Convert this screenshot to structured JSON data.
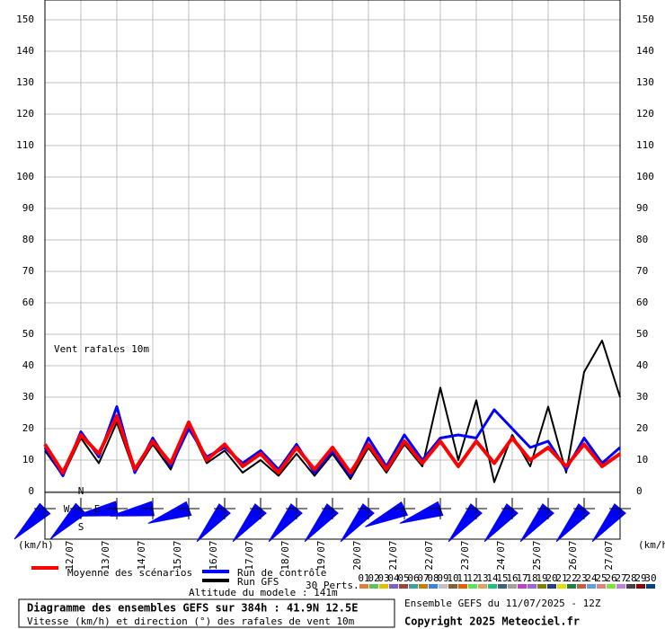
{
  "chart_data": {
    "type": "line",
    "annotation": "Vent rafales 10m",
    "unit_label": "(km/h)",
    "x": [
      0,
      12,
      24,
      36,
      48,
      60,
      72,
      84,
      96,
      108,
      120,
      132,
      144,
      156,
      168,
      180,
      192,
      204,
      216,
      228,
      240,
      252,
      264,
      276,
      288,
      300,
      312,
      324,
      336,
      348,
      360,
      372,
      384
    ],
    "xlim": [
      0,
      384
    ],
    "xticks": [
      0,
      24,
      48,
      72,
      96,
      120,
      144,
      168,
      192,
      216,
      240,
      264,
      288,
      312,
      336,
      360,
      384
    ],
    "ylim": [
      0,
      150
    ],
    "yticks": [
      0,
      10,
      20,
      30,
      40,
      50,
      60,
      70,
      80,
      90,
      100,
      110,
      120,
      130,
      140,
      150
    ],
    "grid": true,
    "series": [
      {
        "name": "Moyenne des scénarios",
        "color": "#ff0000",
        "values": [
          15,
          6,
          18,
          12,
          24,
          7,
          16,
          9,
          22,
          10,
          15,
          8,
          12,
          6,
          14,
          7,
          14,
          6,
          15,
          7,
          16,
          9,
          16,
          8,
          16,
          9,
          17,
          10,
          14,
          8,
          15,
          8,
          12
        ]
      },
      {
        "name": "Run de contrôle",
        "color": "#0000ff",
        "values": [
          14,
          5,
          19,
          11,
          27,
          6,
          17,
          8,
          20,
          11,
          14,
          9,
          13,
          7,
          15,
          6,
          13,
          5,
          17,
          8,
          18,
          10,
          17,
          18,
          17,
          26,
          20,
          14,
          16,
          7,
          17,
          9,
          14
        ]
      },
      {
        "name": "Run GFS",
        "color": "#000000",
        "values": [
          13,
          5,
          17,
          9,
          22,
          6,
          15,
          7,
          21,
          9,
          13,
          6,
          10,
          5,
          12,
          5,
          12,
          4,
          14,
          6,
          15,
          8,
          33,
          10,
          29,
          3,
          18,
          8,
          27,
          6,
          38,
          48,
          30
        ]
      }
    ],
    "dates": [
      "12/07",
      "13/07",
      "14/07",
      "15/07",
      "16/07",
      "17/07",
      "18/07",
      "19/07",
      "20/07",
      "21/07",
      "22/07",
      "23/07",
      "24/07",
      "25/07",
      "26/07",
      "27/07"
    ],
    "wind_direction": [
      45,
      45,
      80,
      80,
      70,
      40,
      40,
      40,
      40,
      40,
      65,
      70,
      40,
      40,
      40,
      40,
      40
    ],
    "wind_compass": [
      "N",
      "W",
      "E",
      "S"
    ],
    "perturbations_label": "30 Perts.",
    "perturbation_labels": [
      "01",
      "02",
      "03",
      "04",
      "05",
      "06",
      "07",
      "08",
      "09",
      "10",
      "11",
      "12",
      "13",
      "14",
      "15",
      "16",
      "17",
      "18",
      "19",
      "20",
      "21",
      "22",
      "23",
      "24",
      "25",
      "26",
      "27",
      "28",
      "29",
      "30"
    ],
    "perturbation_colors": [
      "#e08040",
      "#60c060",
      "#e0c000",
      "#8060c0",
      "#a04040",
      "#40a0a0",
      "#c08000",
      "#4080e0",
      "#c0c0c0",
      "#806040",
      "#e06000",
      "#60e060",
      "#e0a060",
      "#20c080",
      "#406080",
      "#a0a0a0",
      "#c040c0",
      "#a060e0",
      "#808000",
      "#204080",
      "#e0e000",
      "#208040",
      "#c06040",
      "#60a0e0",
      "#e08080",
      "#80e040",
      "#c080e0",
      "#404040",
      "#800000",
      "#004080"
    ],
    "altitude": "Altitude du modele : 141m",
    "footer_title": "Diagramme des ensembles GEFS sur 384h : 41.9N 12.5E",
    "footer_subtitle": "Vitesse (km/h) et direction (°) des rafales de vent 10m",
    "run_info": "Ensemble GEFS du 11/07/2025 - 12Z",
    "copyright": "Copyright 2025 Meteociel.fr"
  }
}
